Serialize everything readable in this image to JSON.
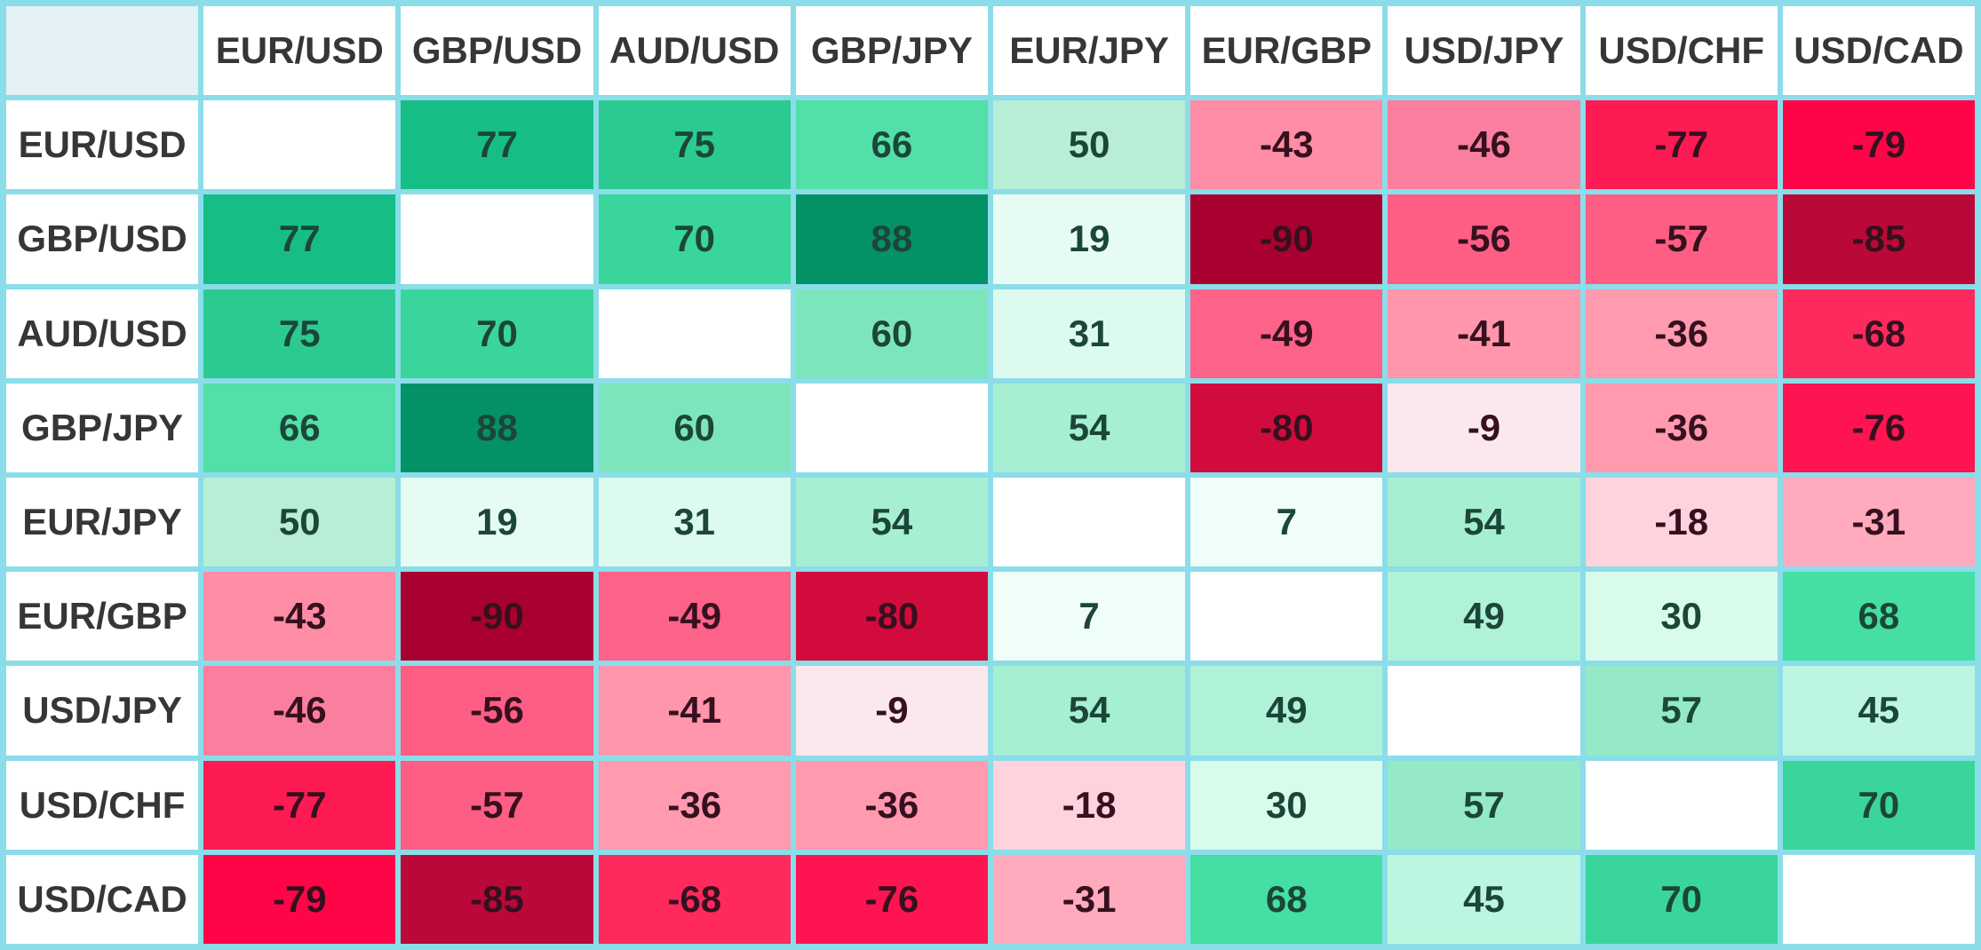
{
  "chart_data": {
    "type": "heatmap",
    "pairs": [
      "EUR/USD",
      "GBP/USD",
      "AUD/USD",
      "GBP/JPY",
      "EUR/JPY",
      "EUR/GBP",
      "USD/JPY",
      "USD/CHF",
      "USD/CAD"
    ],
    "matrix": [
      [
        null,
        77,
        75,
        66,
        50,
        -43,
        -46,
        -77,
        -79
      ],
      [
        77,
        null,
        70,
        88,
        19,
        -90,
        -56,
        -57,
        -85
      ],
      [
        75,
        70,
        null,
        60,
        31,
        -49,
        -41,
        -36,
        -68
      ],
      [
        66,
        88,
        60,
        null,
        54,
        -80,
        -9,
        -36,
        -76
      ],
      [
        50,
        19,
        31,
        54,
        null,
        7,
        54,
        -18,
        -31
      ],
      [
        -43,
        -90,
        -49,
        -80,
        7,
        null,
        49,
        30,
        68
      ],
      [
        -46,
        -56,
        -41,
        -9,
        54,
        49,
        null,
        57,
        45
      ],
      [
        -77,
        -57,
        -36,
        -36,
        -18,
        30,
        57,
        null,
        70
      ],
      [
        -79,
        -85,
        -68,
        -76,
        -31,
        68,
        45,
        70,
        null
      ]
    ],
    "value_range": [
      -100,
      100
    ],
    "color_scale": {
      "88": "#049166",
      "77": "#16BE86",
      "75": "#2BCA91",
      "70": "#3AD59B",
      "68": "#45DEA3",
      "66": "#53DFA8",
      "60": "#7DE5BC",
      "57": "#95E9C6",
      "54": "#A7EFD3",
      "50": "#B7EED5",
      "49": "#B0F2D8",
      "45": "#BDF6E0",
      "31": "#DCFBEE",
      "30": "#D9FBEB",
      "19": "#E6FCF3",
      "7": "#EFFEF8",
      "-9": "#FBE8EE",
      "-18": "#FFD3DE",
      "-31": "#FFAABD",
      "-36": "#FF9AAF",
      "-41": "#FF96AC",
      "-43": "#FF8DA5",
      "-46": "#FA7F9E",
      "-49": "#FD6289",
      "-56": "#FE5E84",
      "-57": "#FE5E84",
      "-68": "#FE2A5E",
      "-76": "#FE1451",
      "-77": "#FE1A52",
      "-79": "#FF0548",
      "-80": "#D20B3D",
      "-85": "#BA0838",
      "-90": "#A9012F"
    }
  },
  "layout": {
    "grid_color": "#8ADDE9",
    "corner_bg": "#E3F1F4",
    "header_bg": "#FFFFFF",
    "diagonal_bg": "#FFFFFF",
    "header_text": "#363636",
    "positive_text": "#1B4638",
    "negative_text": "#36101E"
  }
}
